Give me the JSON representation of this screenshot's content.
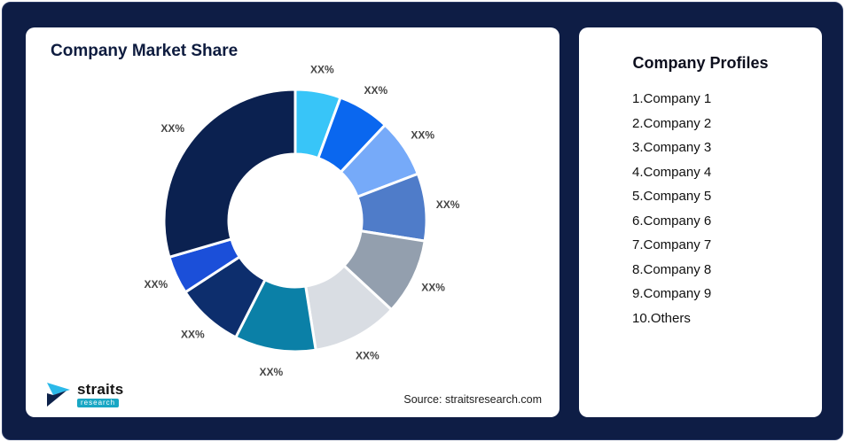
{
  "page": {
    "background": "#0e1d45"
  },
  "left_card": {
    "title": "Company Market Share",
    "source": "Source: straitsresearch.com",
    "logo": {
      "name": "straits",
      "sub": "research"
    }
  },
  "profiles": {
    "title": "Company Profiles",
    "items": [
      "1.Company 1",
      "2.Company 2",
      "3.Company 3",
      "4.Company 4",
      "5.Company 5",
      "6.Company 6",
      "7.Company 7",
      "8.Company 8",
      "9.Company 9",
      "10.Others"
    ]
  },
  "chart_data": {
    "type": "pie",
    "subtype": "donut",
    "title": "Company Market Share",
    "value_labels_masked": "XX%",
    "note_start_angle_deg": 0,
    "segments": [
      {
        "label": "XX%",
        "value": 5.6,
        "color": "#38c5f8"
      },
      {
        "label": "XX%",
        "value": 6.4,
        "color": "#0a67ef"
      },
      {
        "label": "XX%",
        "value": 7.2,
        "color": "#76aaf9"
      },
      {
        "label": "XX%",
        "value": 8.3,
        "color": "#4f7cc9"
      },
      {
        "label": "XX%",
        "value": 9.4,
        "color": "#939fae"
      },
      {
        "label": "XX%",
        "value": 10.6,
        "color": "#d9dde3"
      },
      {
        "label": "XX%",
        "value": 10.0,
        "color": "#0b80a7"
      },
      {
        "label": "XX%",
        "value": 8.3,
        "color": "#0d2e6d"
      },
      {
        "label": "XX%",
        "value": 4.7,
        "color": "#1b4fd9"
      },
      {
        "label": "XX%",
        "value": 29.5,
        "color": "#0b2150"
      }
    ]
  }
}
